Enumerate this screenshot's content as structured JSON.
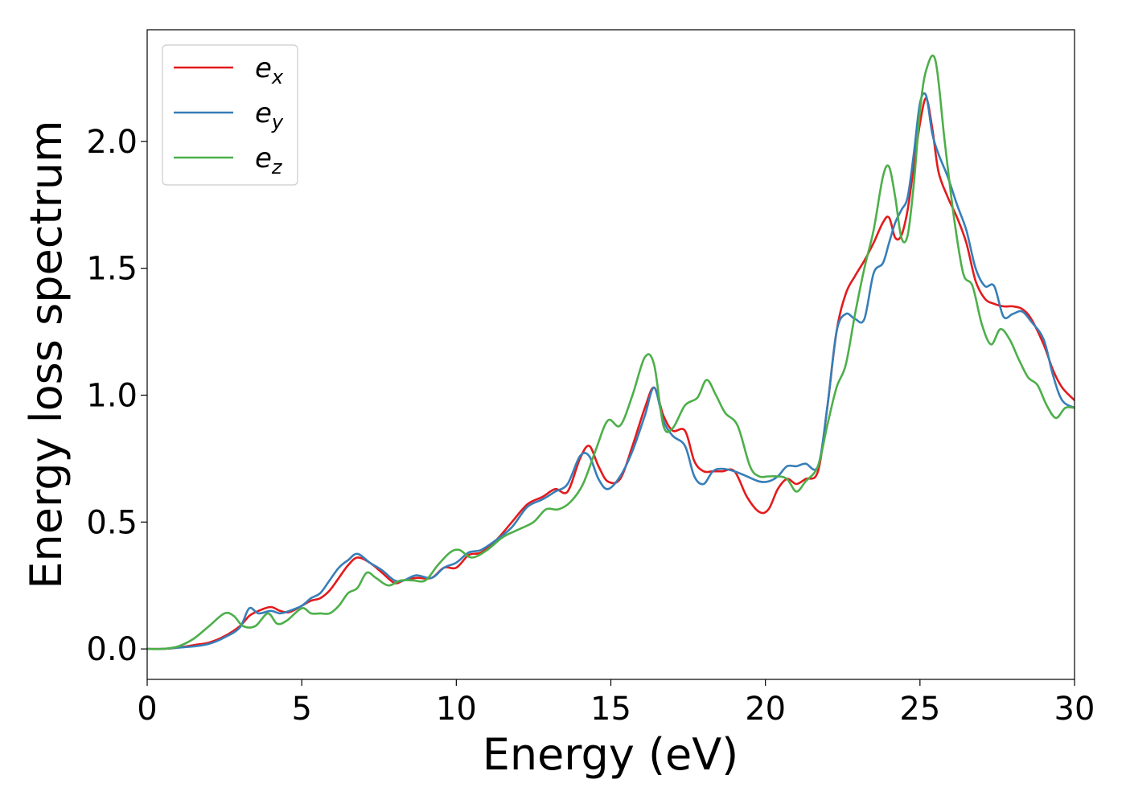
{
  "chart_data": {
    "type": "line",
    "title": "",
    "xlabel": "Energy (eV)",
    "ylabel": "Energy loss spectrum",
    "xlim": [
      0,
      30
    ],
    "ylim": [
      -0.12,
      2.44
    ],
    "xticks": [
      0,
      5,
      10,
      15,
      20,
      25,
      30
    ],
    "xtick_labels": [
      "0",
      "5",
      "10",
      "15",
      "20",
      "25",
      "30"
    ],
    "yticks": [
      0.0,
      0.5,
      1.0,
      1.5,
      2.0
    ],
    "ytick_labels": [
      "0.0",
      "0.5",
      "1.0",
      "1.5",
      "2.0"
    ],
    "grid": false,
    "legend_position": "top-left",
    "series": [
      {
        "name": "e_x",
        "base": "e",
        "sub": "x",
        "color": "#e41a1c",
        "x": [
          0,
          0.5,
          1,
          1.5,
          2,
          2.5,
          3,
          3.3,
          3.6,
          4,
          4.3,
          4.6,
          5,
          5.3,
          5.6,
          5.9,
          6.2,
          6.5,
          6.8,
          7.2,
          7.6,
          8,
          8.3,
          8.7,
          9.2,
          9.6,
          10,
          10.4,
          10.8,
          11.3,
          11.8,
          12.3,
          12.8,
          13.2,
          13.6,
          14,
          14.3,
          14.6,
          14.9,
          15.3,
          15.7,
          16.1,
          16.4,
          16.7,
          17,
          17.4,
          17.7,
          18,
          18.3,
          18.6,
          19,
          19.4,
          19.8,
          20.1,
          20.4,
          20.7,
          21,
          21.3,
          21.7,
          22,
          22.3,
          22.6,
          22.9,
          23.2,
          23.5,
          23.8,
          24,
          24.2,
          24.4,
          24.6,
          24.8,
          25,
          25.2,
          25.4,
          25.6,
          25.9,
          26.2,
          26.5,
          26.8,
          27.1,
          27.4,
          27.7,
          28,
          28.3,
          28.6,
          29,
          29.3,
          29.6,
          30
        ],
        "y": [
          0,
          0,
          0.005,
          0.015,
          0.025,
          0.05,
          0.09,
          0.13,
          0.15,
          0.165,
          0.15,
          0.145,
          0.17,
          0.19,
          0.2,
          0.23,
          0.28,
          0.33,
          0.36,
          0.34,
          0.3,
          0.26,
          0.27,
          0.28,
          0.28,
          0.32,
          0.32,
          0.37,
          0.38,
          0.43,
          0.5,
          0.57,
          0.6,
          0.63,
          0.62,
          0.75,
          0.8,
          0.72,
          0.66,
          0.67,
          0.8,
          0.95,
          1.03,
          0.92,
          0.86,
          0.86,
          0.74,
          0.7,
          0.7,
          0.7,
          0.7,
          0.6,
          0.54,
          0.55,
          0.63,
          0.67,
          0.65,
          0.67,
          0.7,
          0.95,
          1.25,
          1.4,
          1.47,
          1.53,
          1.6,
          1.68,
          1.7,
          1.62,
          1.63,
          1.73,
          1.9,
          2.07,
          2.17,
          2.05,
          1.88,
          1.78,
          1.7,
          1.6,
          1.45,
          1.38,
          1.36,
          1.35,
          1.35,
          1.34,
          1.3,
          1.2,
          1.1,
          1.03,
          0.98
        ]
      },
      {
        "name": "e_y",
        "base": "e",
        "sub": "y",
        "color": "#377eb8",
        "x": [
          0,
          0.5,
          1,
          1.5,
          2,
          2.5,
          3,
          3.3,
          3.6,
          4,
          4.3,
          4.6,
          5,
          5.3,
          5.6,
          5.9,
          6.2,
          6.5,
          6.8,
          7.2,
          7.6,
          8,
          8.3,
          8.7,
          9.2,
          9.6,
          10,
          10.4,
          10.8,
          11.3,
          11.8,
          12.3,
          12.8,
          13.2,
          13.6,
          14,
          14.3,
          14.6,
          14.9,
          15.3,
          15.7,
          16.1,
          16.4,
          16.7,
          17,
          17.4,
          17.7,
          18,
          18.3,
          18.6,
          19,
          19.4,
          19.8,
          20.1,
          20.4,
          20.7,
          21,
          21.3,
          21.7,
          22,
          22.3,
          22.6,
          22.9,
          23.2,
          23.5,
          23.8,
          24,
          24.2,
          24.4,
          24.6,
          24.8,
          25,
          25.2,
          25.4,
          25.6,
          25.9,
          26.2,
          26.5,
          26.8,
          27.1,
          27.4,
          27.7,
          28,
          28.3,
          28.6,
          29,
          29.3,
          29.6,
          30
        ],
        "y": [
          0,
          0,
          0.005,
          0.01,
          0.02,
          0.045,
          0.085,
          0.16,
          0.14,
          0.15,
          0.14,
          0.15,
          0.17,
          0.2,
          0.22,
          0.27,
          0.32,
          0.35,
          0.375,
          0.34,
          0.31,
          0.27,
          0.27,
          0.29,
          0.28,
          0.32,
          0.34,
          0.38,
          0.39,
          0.43,
          0.48,
          0.56,
          0.59,
          0.62,
          0.65,
          0.76,
          0.76,
          0.67,
          0.63,
          0.68,
          0.78,
          0.92,
          1.03,
          0.9,
          0.84,
          0.8,
          0.68,
          0.65,
          0.7,
          0.71,
          0.7,
          0.68,
          0.66,
          0.66,
          0.68,
          0.72,
          0.72,
          0.73,
          0.72,
          0.95,
          1.25,
          1.32,
          1.3,
          1.3,
          1.48,
          1.52,
          1.6,
          1.68,
          1.73,
          1.78,
          1.95,
          2.15,
          2.18,
          2.03,
          1.95,
          1.86,
          1.75,
          1.65,
          1.5,
          1.43,
          1.43,
          1.31,
          1.32,
          1.33,
          1.29,
          1.22,
          1.08,
          0.98,
          0.95
        ]
      },
      {
        "name": "e_z",
        "base": "e",
        "sub": "z",
        "color": "#4daf4a",
        "x": [
          0,
          0.5,
          1,
          1.5,
          2,
          2.5,
          2.8,
          3.1,
          3.5,
          3.9,
          4.2,
          4.5,
          5,
          5.3,
          5.6,
          5.9,
          6.2,
          6.5,
          6.8,
          7.1,
          7.4,
          7.8,
          8.2,
          8.6,
          9,
          9.4,
          9.8,
          10.1,
          10.5,
          11,
          11.5,
          12,
          12.5,
          12.9,
          13.3,
          13.7,
          14.1,
          14.5,
          14.9,
          15.3,
          15.7,
          16.1,
          16.4,
          16.7,
          17,
          17.4,
          17.8,
          18.1,
          18.4,
          18.7,
          19.1,
          19.5,
          19.8,
          20.1,
          20.4,
          20.7,
          21,
          21.3,
          21.7,
          22,
          22.3,
          22.6,
          22.9,
          23.2,
          23.5,
          23.8,
          24,
          24.2,
          24.4,
          24.6,
          24.8,
          25,
          25.2,
          25.5,
          25.8,
          26.1,
          26.4,
          26.7,
          27,
          27.3,
          27.6,
          27.9,
          28.2,
          28.5,
          28.8,
          29.1,
          29.4,
          29.7,
          30
        ],
        "y": [
          0,
          0,
          0.01,
          0.04,
          0.09,
          0.14,
          0.13,
          0.09,
          0.09,
          0.14,
          0.1,
          0.11,
          0.16,
          0.14,
          0.14,
          0.14,
          0.17,
          0.22,
          0.24,
          0.3,
          0.28,
          0.25,
          0.27,
          0.27,
          0.27,
          0.33,
          0.38,
          0.39,
          0.36,
          0.39,
          0.44,
          0.47,
          0.5,
          0.55,
          0.55,
          0.58,
          0.65,
          0.78,
          0.9,
          0.88,
          1.0,
          1.15,
          1.12,
          0.88,
          0.87,
          0.96,
          0.99,
          1.06,
          1.0,
          0.93,
          0.88,
          0.72,
          0.68,
          0.68,
          0.68,
          0.67,
          0.62,
          0.66,
          0.72,
          0.88,
          1.03,
          1.12,
          1.32,
          1.5,
          1.65,
          1.86,
          1.9,
          1.78,
          1.62,
          1.63,
          1.83,
          2.12,
          2.28,
          2.32,
          2.0,
          1.7,
          1.48,
          1.43,
          1.28,
          1.2,
          1.26,
          1.22,
          1.14,
          1.07,
          1.04,
          0.96,
          0.91,
          0.95,
          0.95
        ]
      }
    ]
  }
}
